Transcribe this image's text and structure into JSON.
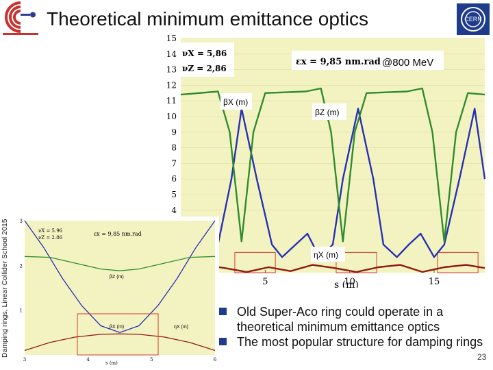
{
  "slide": {
    "title": "Theoretical minimum emittance optics",
    "side_text": "Damping rings, Linear Collider School 2015",
    "page_number": "23",
    "bullets": [
      {
        "text": "Old Super-Aco ring could operate in a theoretical minimum emittance optics"
      },
      {
        "text": "The most popular structure for damping rings"
      }
    ],
    "logo_icon": "lal-logo-icon",
    "cern_icon": "cern-logo-icon",
    "colors": {
      "beta_x": "#2530b4",
      "beta_z": "#2f8c2c",
      "eta_x": "#8e1a10",
      "plot_bg": "#f3f3c2",
      "marker": "#d63a2a"
    }
  },
  "chart_data": [
    {
      "type": "line",
      "xlabel": "s (m)",
      "xticks": [
        "5",
        "10",
        "15"
      ],
      "yticks": [
        "4",
        "5",
        "6",
        "7",
        "8",
        "9",
        "10",
        "11",
        "12",
        "13",
        "14",
        "15"
      ],
      "ylim": [
        0,
        15
      ],
      "annotations": {
        "tune_x": "νX = 5,86",
        "tune_z": "νZ = 2,86",
        "emittance": "εx = 9,85 nm.rad",
        "energy": "@800 MeV",
        "beta_x_label": "βX (m)",
        "beta_z_label": "βZ (m)",
        "eta_x_label": "ηX (m)"
      },
      "series": [
        {
          "name": "βX (m)",
          "x": [
            0,
            1.5,
            2.2,
            3.0,
            3.6,
            4.5,
            5.4,
            6.0,
            6.8,
            7.5,
            8.2,
            9.0,
            9.6,
            10.5,
            11.4,
            12.0,
            12.8,
            13.5,
            14.2,
            15.0,
            15.6,
            16.5,
            17.4,
            18.0
          ],
          "values": [
            2.5,
            1.0,
            1.8,
            6.0,
            10.5,
            6.0,
            1.8,
            1.0,
            1.8,
            2.5,
            1.0,
            1.8,
            6.0,
            10.5,
            6.0,
            1.8,
            1.0,
            1.8,
            2.5,
            1.0,
            1.8,
            6.0,
            10.5,
            6.0
          ]
        },
        {
          "name": "βZ (m)",
          "x": [
            0,
            2.2,
            2.9,
            3.6,
            4.3,
            5.0,
            7.4,
            8.3,
            8.9,
            9.6,
            10.3,
            11.0,
            13.4,
            14.3,
            14.9,
            15.6,
            16.3,
            17.0,
            18.0
          ],
          "values": [
            11.4,
            11.6,
            9.0,
            2.0,
            9.0,
            11.5,
            11.6,
            11.8,
            9.0,
            2.0,
            9.0,
            11.5,
            11.6,
            11.8,
            9.0,
            2.0,
            9.0,
            11.5,
            11.4
          ]
        },
        {
          "name": "ηX (m)",
          "x": [
            0,
            1.3,
            2.6,
            3.9,
            5.2,
            6.5,
            7.8,
            9.1,
            10.4,
            11.7,
            13.0,
            14.3,
            15.6,
            16.9,
            18.0
          ],
          "values": [
            0.3,
            0.5,
            0.3,
            0.05,
            0.35,
            0.1,
            0.5,
            0.3,
            0.05,
            0.35,
            0.5,
            0.05,
            0.35,
            0.5,
            0.3
          ]
        }
      ]
    },
    {
      "type": "line",
      "xlabel": "s (m)",
      "xticks": [
        "3",
        "4",
        "5",
        "6"
      ],
      "yticks": [
        "1",
        "2",
        "3"
      ],
      "ylim": [
        0,
        3
      ],
      "annotations": {
        "tune_x": "νX = 5.96",
        "tune_z": "νZ = 2.86",
        "emittance": "εx = 9,85 nm.rad",
        "beta_x_label": "βX (m)",
        "beta_z_label": "βZ (m)",
        "eta_x_label": "ηX (m)"
      },
      "series": [
        {
          "name": "βX (m)",
          "x": [
            3.0,
            3.3,
            3.6,
            3.9,
            4.2,
            4.5,
            4.8,
            5.1,
            5.4,
            5.7,
            6.0
          ],
          "values": [
            3.0,
            2.4,
            1.7,
            1.1,
            0.65,
            0.5,
            0.65,
            1.1,
            1.7,
            2.4,
            3.0
          ]
        },
        {
          "name": "βZ (m)",
          "x": [
            3.0,
            3.4,
            3.8,
            4.2,
            4.5,
            4.8,
            5.2,
            5.6,
            6.0
          ],
          "values": [
            2.2,
            2.18,
            2.05,
            1.92,
            1.88,
            1.92,
            2.05,
            2.18,
            2.2
          ]
        },
        {
          "name": "ηX (m)",
          "x": [
            3.0,
            3.4,
            3.8,
            4.2,
            4.5,
            4.8,
            5.2,
            5.6,
            6.0
          ],
          "values": [
            0.1,
            0.28,
            0.4,
            0.46,
            0.47,
            0.46,
            0.4,
            0.28,
            0.1
          ]
        }
      ]
    }
  ]
}
